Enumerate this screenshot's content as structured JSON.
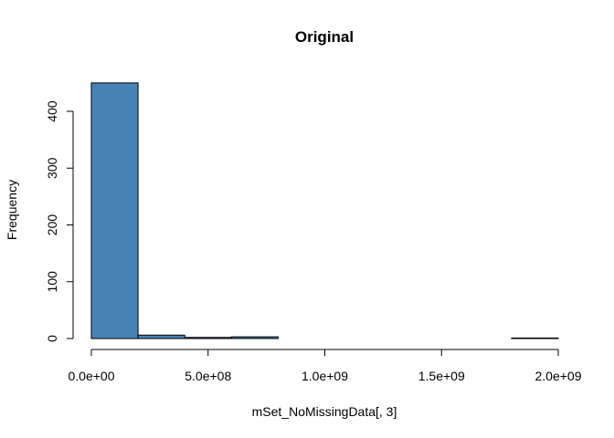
{
  "chart_data": {
    "type": "bar",
    "subtype": "histogram",
    "title": "Original",
    "xlabel": "mSet_NoMissingData[, 3]",
    "ylabel": "Frequency",
    "bin_width": 200000000,
    "bin_edges": [
      0,
      200000000,
      400000000,
      600000000,
      800000000,
      1000000000,
      1200000000,
      1400000000,
      1600000000,
      1800000000,
      2000000000
    ],
    "values": [
      450,
      6,
      2,
      3,
      0,
      0,
      0,
      0,
      0,
      1
    ],
    "xlim": [
      0,
      2000000000
    ],
    "ylim": [
      0,
      450
    ],
    "x_ticks": [
      0,
      500000000,
      1000000000,
      1500000000,
      2000000000
    ],
    "x_tick_labels": [
      "0.0e+00",
      "5.0e+08",
      "1.0e+09",
      "1.5e+09",
      "2.0e+09"
    ],
    "y_ticks": [
      0,
      100,
      200,
      300,
      400
    ],
    "y_tick_labels": [
      "0",
      "100",
      "200",
      "300",
      "400"
    ],
    "bar_color": "#4682B4",
    "grid": false,
    "legend": "none"
  }
}
